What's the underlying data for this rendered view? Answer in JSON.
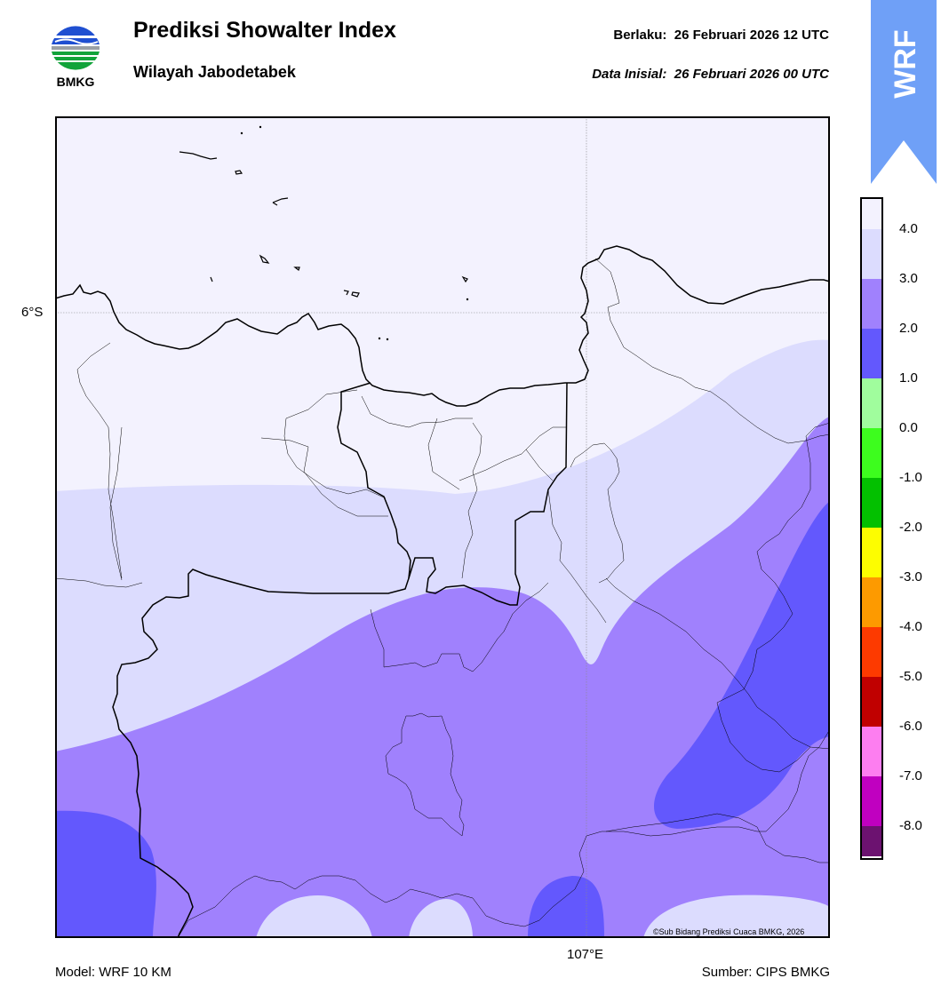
{
  "header": {
    "title": "Prediksi Showalter Index",
    "subtitle": "Wilayah Jabodetabek",
    "valid_label": "Berlaku:",
    "valid_time": "26 Februari 2026 12 UTC",
    "init_label": "Data Inisial:",
    "init_time": "26 Februari 2026 00 UTC"
  },
  "logo": {
    "icon": "bmkg-logo-icon",
    "text": "BMKG"
  },
  "badge": {
    "text": "WRF",
    "color": "#6fa0f7"
  },
  "map": {
    "lat_label": "6°S",
    "lon_label": "107°E",
    "copyright": "©Sub Bidang Prediksi Cuaca BMKG, 2026"
  },
  "footer": {
    "model": "Model: WRF 10 KM",
    "source": "Sumber: CIPS BMKG"
  },
  "colorbar": {
    "labels": [
      "4.0",
      "3.0",
      "2.0",
      "1.0",
      "0.0",
      "-1.0",
      "-2.0",
      "-3.0",
      "-4.0",
      "-5.0",
      "-6.0",
      "-7.0",
      "-8.0"
    ],
    "colors_top_to_bottom": [
      "#f3f2fe",
      "#dcdcfe",
      "#a081fd",
      "#6358fd",
      "#a0fd9d",
      "#3dfd1e",
      "#03c000",
      "#fdfd00",
      "#fd9a00",
      "#fd3a00",
      "#c00000",
      "#fd7ef0",
      "#c000c0",
      "#6c1270"
    ]
  },
  "fill_colors": {
    "above_4": "#f3f2fe",
    "3_to_4": "#dcdcfe",
    "2_to_3": "#a081fd",
    "1_to_2": "#6358fd"
  }
}
